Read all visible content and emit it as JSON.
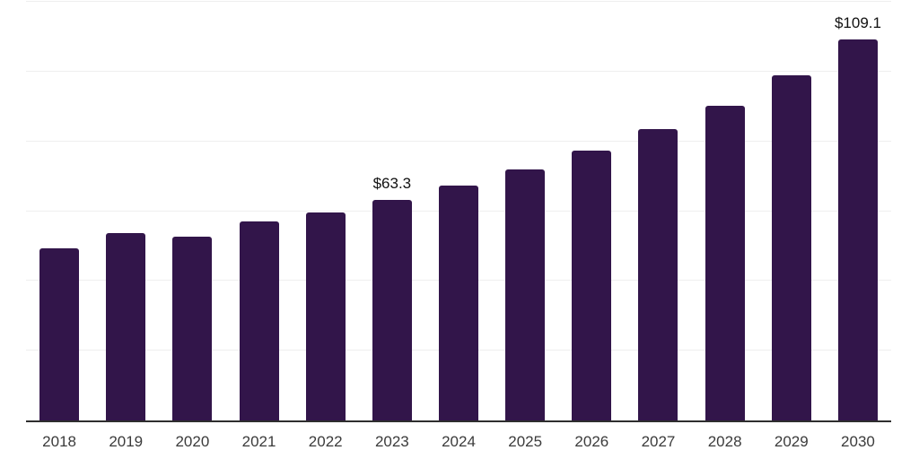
{
  "chart_data": {
    "type": "bar",
    "title": "",
    "xlabel": "",
    "ylabel": "",
    "categories": [
      "2018",
      "2019",
      "2020",
      "2021",
      "2022",
      "2023",
      "2024",
      "2025",
      "2026",
      "2027",
      "2028",
      "2029",
      "2030"
    ],
    "values": [
      49.3,
      53.6,
      52.6,
      57.0,
      59.5,
      63.3,
      67.3,
      71.9,
      77.3,
      83.4,
      90.3,
      99.0,
      109.1
    ],
    "data_labels": [
      {
        "category": "2023",
        "text": "$63.3"
      },
      {
        "category": "2030",
        "text": "$109.1"
      }
    ],
    "ylim": [
      0,
      120
    ],
    "gridline_step": 20,
    "grid": true,
    "legend": false,
    "y_tick_labels_visible": false
  },
  "style": {
    "background_color": "#ffffff",
    "bar_color": "#32154a",
    "gridline_color": "#efefef",
    "axis_line_color": "#2e2e2e",
    "tick_label_color": "#3b3b3b",
    "data_label_color": "#111111"
  }
}
